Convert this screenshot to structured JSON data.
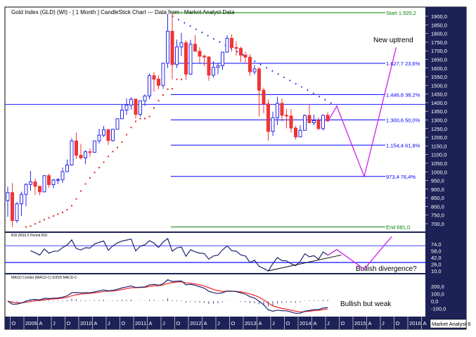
{
  "chart_data": {
    "type": "candlestick",
    "title": "Gold Index (GLD) (WI) -  [ 1 Month ] CandleStick Chart --- Data from : Market Analyst Data",
    "start_month": "2008-09",
    "candles_ohlc": [
      [
        833,
        915,
        740,
        880
      ],
      [
        880,
        935,
        681,
        718
      ],
      [
        718,
        825,
        705,
        815
      ],
      [
        815,
        885,
        745,
        870
      ],
      [
        870,
        935,
        800,
        927
      ],
      [
        927,
        1005,
        890,
        942
      ],
      [
        942,
        960,
        866,
        916
      ],
      [
        916,
        920,
        865,
        884
      ],
      [
        884,
        980,
        883,
        978
      ],
      [
        978,
        990,
        908,
        926
      ],
      [
        926,
        960,
        905,
        953
      ],
      [
        953,
        965,
        930,
        955
      ],
      [
        955,
        1025,
        935,
        1001
      ],
      [
        1001,
        1071,
        1000,
        1040
      ],
      [
        1040,
        1195,
        1035,
        1179
      ],
      [
        1179,
        1227,
        1075,
        1096
      ],
      [
        1096,
        1162,
        1071,
        1081
      ],
      [
        1081,
        1125,
        1045,
        1116
      ],
      [
        1116,
        1136,
        1087,
        1113
      ],
      [
        1113,
        1180,
        1111,
        1179
      ],
      [
        1179,
        1249,
        1163,
        1212
      ],
      [
        1212,
        1265,
        1201,
        1244
      ],
      [
        1244,
        1245,
        1155,
        1181
      ],
      [
        1181,
        1248,
        1175,
        1246
      ],
      [
        1246,
        1310,
        1245,
        1307
      ],
      [
        1307,
        1388,
        1315,
        1357
      ],
      [
        1357,
        1424,
        1330,
        1386
      ],
      [
        1386,
        1431,
        1360,
        1420
      ],
      [
        1420,
        1424,
        1308,
        1332
      ],
      [
        1332,
        1414,
        1320,
        1411
      ],
      [
        1411,
        1447,
        1381,
        1439
      ],
      [
        1439,
        1569,
        1419,
        1556
      ],
      [
        1556,
        1577,
        1462,
        1536
      ],
      [
        1536,
        1560,
        1478,
        1500
      ],
      [
        1500,
        1632,
        1480,
        1628
      ],
      [
        1628,
        1913,
        1600,
        1813
      ],
      [
        1813,
        1920,
        1535,
        1620
      ],
      [
        1620,
        1764,
        1600,
        1722
      ],
      [
        1722,
        1803,
        1670,
        1746
      ],
      [
        1746,
        1760,
        1531,
        1565
      ],
      [
        1565,
        1763,
        1560,
        1738
      ],
      [
        1738,
        1790,
        1695,
        1697
      ],
      [
        1697,
        1720,
        1630,
        1669
      ],
      [
        1669,
        1677,
        1612,
        1664
      ],
      [
        1664,
        1670,
        1527,
        1559
      ],
      [
        1559,
        1640,
        1546,
        1604
      ],
      [
        1604,
        1627,
        1564,
        1614
      ],
      [
        1614,
        1693,
        1590,
        1692
      ],
      [
        1692,
        1790,
        1690,
        1772
      ],
      [
        1772,
        1795,
        1695,
        1719
      ],
      [
        1719,
        1755,
        1672,
        1714
      ],
      [
        1714,
        1723,
        1635,
        1675
      ],
      [
        1675,
        1695,
        1627,
        1663
      ],
      [
        1663,
        1680,
        1555,
        1578
      ],
      [
        1578,
        1617,
        1562,
        1595
      ],
      [
        1595,
        1605,
        1321,
        1472
      ],
      [
        1472,
        1487,
        1338,
        1393
      ],
      [
        1393,
        1417,
        1180,
        1234
      ],
      [
        1234,
        1348,
        1208,
        1313
      ],
      [
        1313,
        1434,
        1271,
        1396
      ],
      [
        1396,
        1424,
        1292,
        1327
      ],
      [
        1327,
        1362,
        1251,
        1323
      ],
      [
        1323,
        1362,
        1227,
        1253
      ],
      [
        1253,
        1267,
        1187,
        1202
      ],
      [
        1202,
        1270,
        1202,
        1240
      ],
      [
        1240,
        1332,
        1238,
        1326
      ],
      [
        1326,
        1392,
        1285,
        1284
      ],
      [
        1284,
        1331,
        1268,
        1296
      ],
      [
        1296,
        1315,
        1240,
        1250
      ],
      [
        1250,
        1332,
        1240,
        1327
      ],
      [
        1327,
        1345,
        1288,
        1295
      ]
    ],
    "y_ticks": [
      "1900,0",
      "1850,0",
      "1800,0",
      "1750,0",
      "1700,0",
      "1650,0",
      "1600,0",
      "1550,0",
      "1500,0",
      "1450,0",
      "1400,0",
      "1350,0",
      "1300,0",
      "1250,0",
      "1200,0",
      "1150,0",
      "1100,0",
      "1050,0",
      "1000,0",
      "950,0",
      "900,0",
      "850,0",
      "800,0",
      "750,0",
      "700,0"
    ],
    "ylim": [
      700,
      1900
    ],
    "horizontal_line": 1390,
    "fib_levels": [
      {
        "value": 1920.2,
        "label": "Start 1.920,2",
        "color": "#008000"
      },
      {
        "value": 1627.7,
        "label": "1.627,7 23,6%",
        "color": "#0000ff"
      },
      {
        "value": 1446.8,
        "label": "1.446,8 38,2%",
        "color": "#0000ff"
      },
      {
        "value": 1300.6,
        "label": "1.300,6 50,0%",
        "color": "#0000ff"
      },
      {
        "value": 1154.4,
        "label": "1.154,4 61,8%",
        "color": "#0000ff"
      },
      {
        "value": 973.4,
        "label": "973,4 76,4%",
        "color": "#0000ff"
      },
      {
        "value": 681.0,
        "label": "End 681,0",
        "color": "#008000"
      }
    ],
    "downtrend_line": [
      [
        "2011-09",
        1900
      ],
      [
        "2014-09",
        1380
      ]
    ],
    "projection": [
      [
        "2014-07",
        1290
      ],
      [
        "2014-09",
        1380
      ],
      [
        "2015-03",
        973
      ],
      [
        "2015-10",
        1720
      ]
    ],
    "annotation_main": "New uptrend",
    "rsi": {
      "label": "RSI (RSI) 5 Period RSI",
      "period": 5,
      "y_ticks": [
        "74,0",
        "58,0",
        "42,0",
        "26,0",
        "10,0"
      ],
      "levels": [
        70,
        30
      ],
      "trendline": [
        [
          "2013-06",
          10
        ],
        [
          "2014-10",
          48
        ]
      ],
      "projection": [
        [
          "2014-07",
          47
        ],
        [
          "2014-09",
          61
        ],
        [
          "2015-03",
          14
        ],
        [
          "2015-09",
          92
        ]
      ],
      "annotation": "Bullish divergence?"
    },
    "macd": {
      "label": "MACD Combo (MACD-C) 5/25/5 MACD-C",
      "fast": 5,
      "slow": 25,
      "signal": 5,
      "y_ticks": [
        "200,0",
        "100,0",
        "0,0",
        "-100,0"
      ],
      "annotation": "Bullish but weak"
    },
    "x_ticks": [
      "O",
      "2009",
      "A",
      "J",
      "O",
      "2010",
      "A",
      "J",
      "O",
      "2011",
      "A",
      "J",
      "O",
      "2012",
      "A",
      "J",
      "O",
      "2013",
      "A",
      "J",
      "O",
      "2014",
      "A",
      "J",
      "O",
      "2015",
      "A",
      "J",
      "O",
      "2016",
      "A"
    ],
    "footer_brand": "Market Analyst 6",
    "colors": {
      "up": "#2828e8",
      "down": "#f03434",
      "axis_bg": "#1c2156",
      "projection": "#cc22ee",
      "sar": "#e02020"
    }
  }
}
